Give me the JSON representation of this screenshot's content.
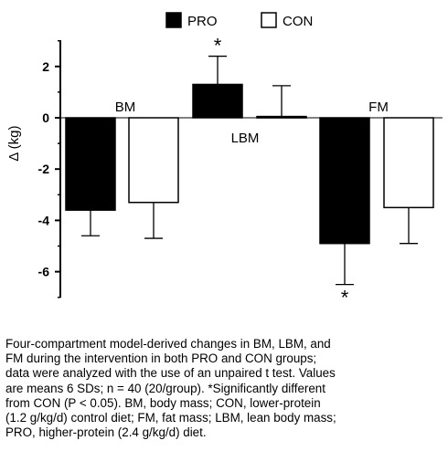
{
  "chart_data": {
    "type": "bar",
    "title": "",
    "xlabel": "",
    "ylabel": "Δ (kg)",
    "ylim": [
      -7,
      3
    ],
    "yticks": [
      2,
      0,
      -2,
      -4,
      -6
    ],
    "grid": false,
    "legend_placement": "top",
    "categories": [
      "BM",
      "LBM",
      "FM"
    ],
    "series": [
      {
        "name": "PRO",
        "color": "#000000",
        "values": [
          -3.6,
          1.3,
          -4.9
        ],
        "error": [
          1.0,
          1.1,
          1.6
        ],
        "significance": [
          "",
          "*",
          "*"
        ]
      },
      {
        "name": "CON",
        "color": "#ffffff",
        "values": [
          -3.3,
          0.05,
          -3.5
        ],
        "error": [
          1.4,
          1.2,
          1.4
        ],
        "significance": [
          "",
          "",
          ""
        ]
      }
    ]
  },
  "caption": {
    "lines": [
      "Four-compartment model-derived changes in BM, LBM, and",
      "FM during the intervention in both PRO and CON groups;",
      "data were analyzed with the use of an unpaired t test. Values",
      "are means 6 SDs; n = 40 (20/group). *Significantly different",
      "from CON (P < 0.05). BM, body mass; CON, lower-protein",
      "(1.2 g/kg/d) control diet; FM, fat mass; LBM, lean body mass;",
      " PRO, higher-protein (2.4 g/kg/d) diet."
    ]
  }
}
